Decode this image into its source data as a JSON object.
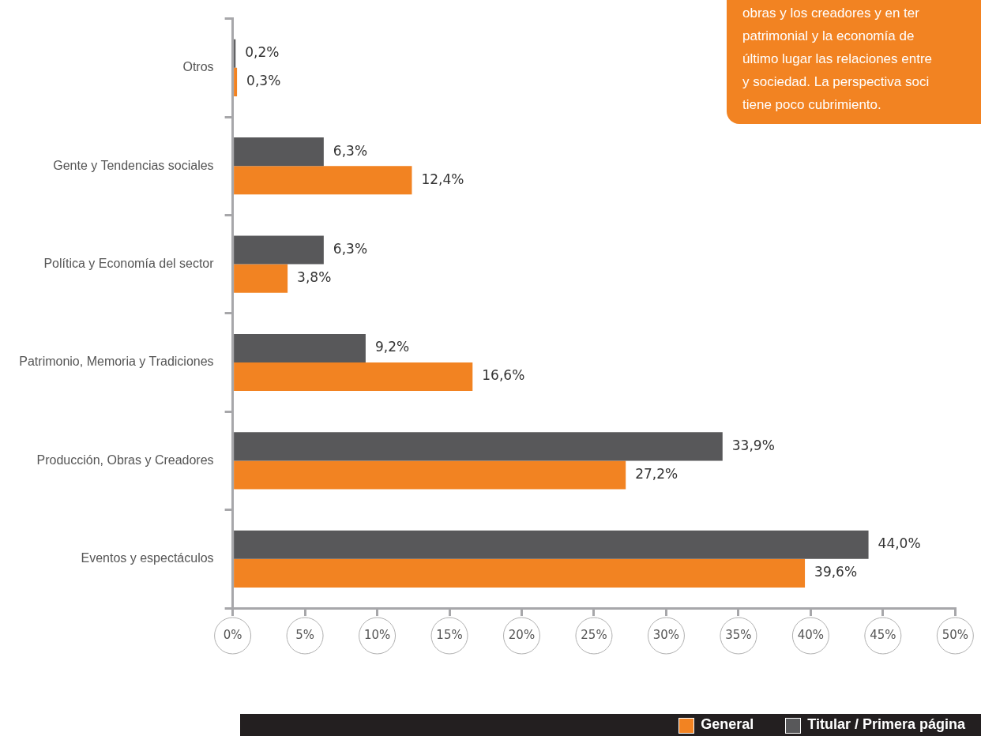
{
  "chart_data": {
    "type": "bar",
    "orientation": "horizontal",
    "categories": [
      "Otros",
      "Gente y Tendencias sociales",
      "Política y Economía del sector",
      "Patrimonio, Memoria y Tradiciones",
      "Producción, Obras y Creadores",
      "Eventos y espectáculos"
    ],
    "series": [
      {
        "name": "Titular / Primera página",
        "color": "#58585a",
        "values": [
          0.2,
          6.3,
          6.3,
          9.2,
          33.9,
          44.0
        ],
        "value_labels": [
          "0,2%",
          "6,3%",
          "6,3%",
          "9,2%",
          "33,9%",
          "44,0%"
        ]
      },
      {
        "name": "General",
        "color": "#f28322",
        "values": [
          0.3,
          12.4,
          3.8,
          16.6,
          27.2,
          39.6
        ],
        "value_labels": [
          "0,3%",
          "12,4%",
          "3,8%",
          "16,6%",
          "27,2%",
          "39,6%"
        ]
      }
    ],
    "xlim": [
      0,
      50
    ],
    "xticks": [
      {
        "value": 0,
        "label": "0%"
      },
      {
        "value": 5,
        "label": "5%"
      },
      {
        "value": 10,
        "label": "10%"
      },
      {
        "value": 15,
        "label": "15%"
      },
      {
        "value": 20,
        "label": "20%"
      },
      {
        "value": 25,
        "label": "25%"
      },
      {
        "value": 30,
        "label": "30%"
      },
      {
        "value": 35,
        "label": "35%"
      },
      {
        "value": 40,
        "label": "40%"
      },
      {
        "value": 45,
        "label": "45%"
      },
      {
        "value": 50,
        "label": "50%"
      }
    ],
    "grid": false,
    "legend": "bottom",
    "annotations": [
      "obras y los creadores y en ter\npatrimonial y la economía de\núltimo lugar las relaciones entre\ny sociedad. La perspectiva soci\ntiene poco cubrimiento."
    ]
  }
}
